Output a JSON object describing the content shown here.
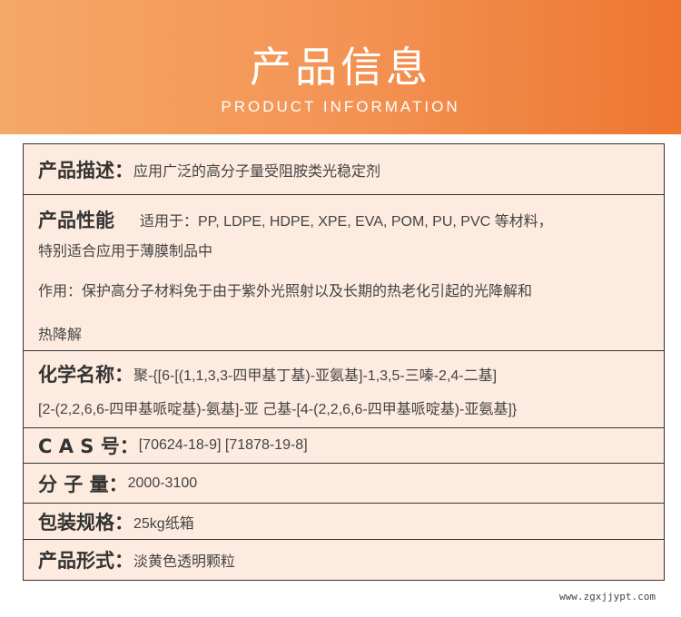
{
  "header": {
    "title": "产品信息",
    "subtitle": "PRODUCT INFORMATION",
    "colors": {
      "gradient_start": "#f5a868",
      "gradient_end": "#ee7630",
      "table_bg": "#fdebdf"
    }
  },
  "rows": {
    "description": {
      "label": "产品描述：",
      "value": "应用广泛的高分子量受阻胺类光稳定剂"
    },
    "performance": {
      "label": "产品性能",
      "line1": "适用于：PP, LDPE, HDPE, XPE, EVA, POM, PU, PVC 等材料，",
      "line2": "特别适合应用于薄膜制品中",
      "line3": "作用：保护高分子材料免于由于紫外光照射以及长期的热老化引起的光降解和",
      "line4": "热降解"
    },
    "chemical": {
      "label": "化学名称：",
      "line1": "聚-{[6-[(1,1,3,3-四甲基丁基)-亚氨基]-1,3,5-三嗪-2,4-二基]",
      "line2": "[2-(2,2,6,6-四甲基哌啶基)-氨基]-亚 己基-[4-(2,2,6,6-四甲基哌啶基)-亚氨基]}"
    },
    "cas": {
      "label": "C A S 号：",
      "value": "[70624-18-9] [71878-19-8]"
    },
    "mw": {
      "label": "分 子 量：",
      "value": "2000-3100"
    },
    "packing": {
      "label": "包装规格：",
      "value": "25kg纸箱"
    },
    "form": {
      "label": "产品形式：",
      "value": "淡黄色透明颗粒"
    }
  },
  "watermark": "www.zgxjjypt.com"
}
